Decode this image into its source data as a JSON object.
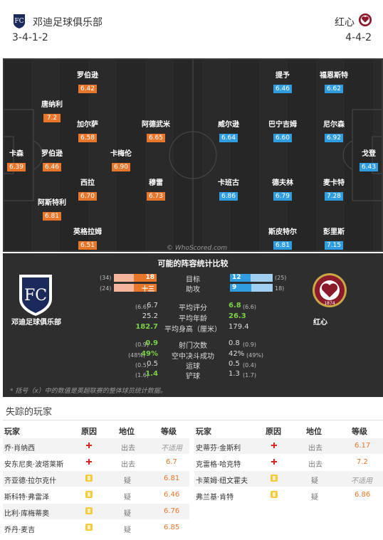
{
  "home": {
    "name": "邓迪足球俱乐部",
    "formation": "3-4-1-2",
    "short_name": "邓迪足球俱乐部"
  },
  "away": {
    "name": "红心",
    "formation": "4-4-2",
    "short_name": "红心"
  },
  "home_players": [
    {
      "name": "罗伯逊",
      "rating": "6.42"
    },
    {
      "name": "唐纳利",
      "rating": "7.2"
    },
    {
      "name": "加尔萨",
      "rating": "6.58"
    },
    {
      "name": "阿德武米",
      "rating": "6.65"
    },
    {
      "name": "卡森",
      "rating": "6.39"
    },
    {
      "name": "罗伯逊",
      "rating": "6.46"
    },
    {
      "name": "卡梅伦",
      "rating": "6.90"
    },
    {
      "name": "西拉",
      "rating": "6.70"
    },
    {
      "name": "穆雷",
      "rating": "6.73"
    },
    {
      "name": "阿斯特利",
      "rating": "6.81"
    },
    {
      "name": "英格拉姆",
      "rating": "6.51"
    }
  ],
  "away_players": [
    {
      "name": "提予",
      "rating": "6.46"
    },
    {
      "name": "福恩斯特",
      "rating": "6.62"
    },
    {
      "name": "威尔逊",
      "rating": "6.64"
    },
    {
      "name": "巴宁吉姆",
      "rating": "6.60"
    },
    {
      "name": "尼尔森",
      "rating": "6.92"
    },
    {
      "name": "戈登",
      "rating": "6.43"
    },
    {
      "name": "卡班古",
      "rating": "6.86"
    },
    {
      "name": "德夫林",
      "rating": "6.79"
    },
    {
      "name": "麦卡特",
      "rating": "7.28"
    },
    {
      "name": "斯皮特尔",
      "rating": "6.81"
    },
    {
      "name": "彭里斯",
      "rating": "7.15"
    }
  ],
  "watermark": "© WhoScored.com",
  "comparison": {
    "title": "可能的阵容统计比较",
    "goals": {
      "label": "目标",
      "home": "18",
      "home_team": "(34)",
      "away": "12",
      "away_team": "(25)",
      "home_frac": 0.53,
      "away_frac": 0.48
    },
    "assists": {
      "label": "助攻",
      "home": "十三",
      "home_team": "(24)",
      "away": "9",
      "away_team": "18)",
      "home_frac": 0.54,
      "away_frac": 0.5
    },
    "rows": [
      {
        "label": "平均评分",
        "home_team": "(6.6)",
        "home": "6.7",
        "away": "6.8",
        "away_team": "(6.6)"
      },
      {
        "label": "平均年龄",
        "home_team": "",
        "home": "25.2",
        "away": "26.3",
        "away_team": ""
      },
      {
        "label": "平均身高（厘米）",
        "home_team": "",
        "home": "182.7",
        "away": "179.4",
        "away_team": ""
      },
      {
        "label": "射门次数",
        "home_team": "(0.9)",
        "home": "0.9",
        "away": "0.8",
        "away_team": "(0.9)"
      },
      {
        "label": "空中决斗成功",
        "home_team": "(48%)",
        "home": "49%",
        "away": "42%",
        "away_team": "(49%)"
      },
      {
        "label": "运球",
        "home_team": "(0.5)",
        "home": "0.5",
        "away": "0.5",
        "away_team": "(0.4)"
      },
      {
        "label": "铲球",
        "home_team": "(1.6)",
        "home": "1.4",
        "away": "1.3",
        "away_team": "(1.7)"
      }
    ],
    "footnote": "* 括号（x）中的数值是英超联赛的整体球员统计数据。",
    "colors": {
      "home": "#e8762b",
      "away": "#2f9de0"
    }
  },
  "missing": {
    "title": "失踪的玩家",
    "headers": {
      "player": "玩家",
      "reason": "原因",
      "status": "地位",
      "rating": "等级"
    },
    "home": [
      {
        "player": "乔·肖纳西",
        "reason": "injury",
        "status": "出去",
        "rating": "不适用"
      },
      {
        "player": "安东尼奥·波塔莱斯",
        "reason": "injury",
        "status": "出去",
        "rating": "6.7"
      },
      {
        "player": "齐亚德·拉尔克什",
        "reason": "doubtful",
        "status": "疑",
        "rating": "6.81"
      },
      {
        "player": "斯科特·弗雷泽",
        "reason": "doubtful",
        "status": "疑",
        "rating": "6.46"
      },
      {
        "player": "比利·库梅蒂奥",
        "reason": "doubtful",
        "status": "疑",
        "rating": "6.76"
      },
      {
        "player": "乔丹·麦吉",
        "reason": "doubtful",
        "status": "疑",
        "rating": "6.85"
      }
    ],
    "away": [
      {
        "player": "史蒂芬·金斯利",
        "reason": "injury",
        "status": "出去",
        "rating": "6.17"
      },
      {
        "player": "克雷格·哈克特",
        "reason": "injury",
        "status": "出去",
        "rating": "7.2"
      },
      {
        "player": "卡莱姆·纽文霍夫",
        "reason": "doubtful",
        "status": "疑",
        "rating": "不适用"
      },
      {
        "player": "弗兰基·肯特",
        "reason": "doubtful",
        "status": "疑",
        "rating": "6.86"
      }
    ]
  }
}
